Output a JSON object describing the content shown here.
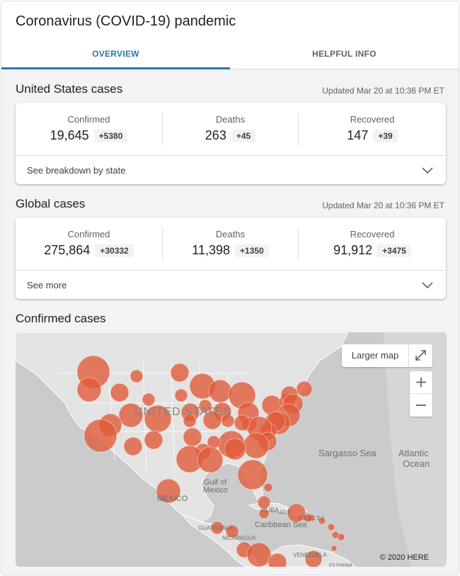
{
  "header": {
    "title": "Coronavirus (COVID-19) pandemic",
    "tabs": [
      {
        "label": "OVERVIEW",
        "active": true
      },
      {
        "label": "HELPFUL INFO",
        "active": false
      }
    ],
    "accent_color": "#2b78a8"
  },
  "us_cases": {
    "title": "United States cases",
    "updated": "Updated Mar 20 at 10:36 PM ET",
    "stats": [
      {
        "label": "Confirmed",
        "value": "19,645",
        "delta": "+5380"
      },
      {
        "label": "Deaths",
        "value": "263",
        "delta": "+45"
      },
      {
        "label": "Recovered",
        "value": "147",
        "delta": "+39"
      }
    ],
    "expand_label": "See breakdown by state"
  },
  "global_cases": {
    "title": "Global cases",
    "updated": "Updated Mar 20 at 10:36 PM ET",
    "stats": [
      {
        "label": "Confirmed",
        "value": "275,864",
        "delta": "+30332"
      },
      {
        "label": "Deaths",
        "value": "11,398",
        "delta": "+1350"
      },
      {
        "label": "Recovered",
        "value": "91,912",
        "delta": "+3475"
      }
    ],
    "expand_label": "See more"
  },
  "confirmed_map": {
    "title": "Confirmed cases",
    "larger_map_label": "Larger map",
    "copyright": "© 2020 HERE",
    "marker_color": "#e05a38",
    "labels": {
      "country": "UNITED STATES",
      "sargasso": "Sargasso Sea",
      "atlantic_1": "Atlantic",
      "atlantic_2": "Ocean",
      "gulf_1": "Gulf of",
      "gulf_2": "Mexico",
      "mexico": "MEXICO",
      "cuba": "CUBA",
      "caribbean": "Caribbean Sea",
      "guatemala": "GUATEMALA",
      "nicaragua": "NICARAGUA",
      "venezuela": "VENEZUELA",
      "guyana": "GUYANA",
      "haiti": "HAITI",
      "pr": "P.R.(U.S.)"
    }
  }
}
